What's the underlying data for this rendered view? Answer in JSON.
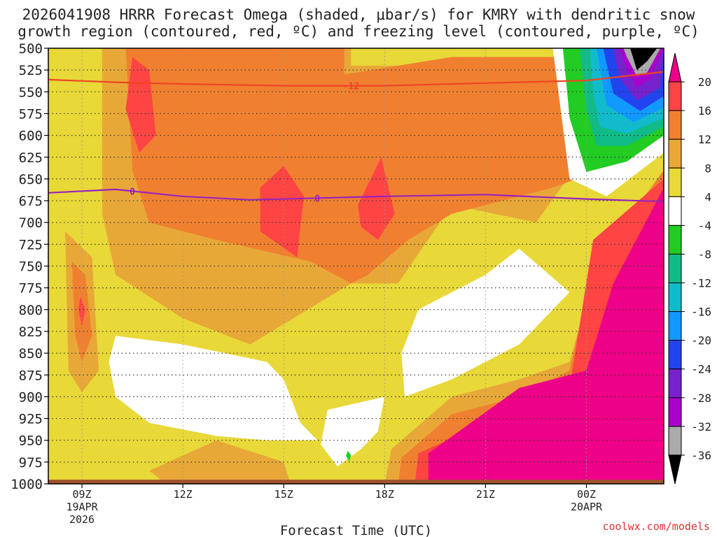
{
  "chart_data": {
    "type": "heatmap",
    "title_line1": "2026041908 HRRR Forecast Omega (shaded, μbar/s) for KMRY with dendritic snow",
    "title_line2": "growth region (contoured, red, ºC) and freezing level (contoured, purple, ºC)",
    "xlabel": "Forecast Time (UTC)",
    "ylabel": "",
    "credit": "coolwx.com/models",
    "x_range_hours": [
      8,
      26.3
    ],
    "x_ticks": [
      {
        "hour": 9,
        "label": "09Z",
        "sub1": "19APR",
        "sub2": "2026"
      },
      {
        "hour": 12,
        "label": "12Z"
      },
      {
        "hour": 15,
        "label": "15Z"
      },
      {
        "hour": 18,
        "label": "18Z"
      },
      {
        "hour": 21,
        "label": "21Z"
      },
      {
        "hour": 24,
        "label": "00Z",
        "sub1": "20APR"
      }
    ],
    "y_ticks": [
      500,
      525,
      550,
      575,
      600,
      625,
      650,
      675,
      700,
      725,
      750,
      775,
      800,
      825,
      850,
      875,
      900,
      925,
      950,
      975,
      1000
    ],
    "y_range_hpa": [
      500,
      1000
    ],
    "colorbar": {
      "labels": [
        "20",
        "16",
        "12",
        "8",
        "4",
        "-4",
        "-8",
        "-12",
        "-16",
        "-20",
        "-24",
        "-28",
        "-32",
        "-36"
      ],
      "colors": [
        "#ee0088",
        "#ff4444",
        "#f08030",
        "#e8a838",
        "#e8d838",
        "#ffffff",
        "#22cc22",
        "#11bb88",
        "#11bbcc",
        "#1199ff",
        "#2244ee",
        "#7722cc",
        "#aa00cc",
        "#aaaaaa",
        "#000000"
      ]
    },
    "contours": [
      {
        "name": "dendritic snow growth region",
        "label": "-12",
        "color": "#ee4422",
        "points_hour_hpa": [
          [
            8,
            536
          ],
          [
            10,
            539
          ],
          [
            12,
            541
          ],
          [
            15,
            543
          ],
          [
            16,
            543
          ],
          [
            18,
            543
          ],
          [
            21,
            540
          ],
          [
            24,
            537
          ],
          [
            26.3,
            527
          ]
        ]
      },
      {
        "name": "freezing level",
        "label": "0",
        "color": "#9922bb",
        "points_hour_hpa": [
          [
            8,
            666
          ],
          [
            10,
            662
          ],
          [
            12,
            670
          ],
          [
            14,
            674
          ],
          [
            16,
            672
          ],
          [
            18,
            670
          ],
          [
            21,
            668
          ],
          [
            24,
            673
          ],
          [
            26.3,
            676
          ]
        ]
      }
    ],
    "regions": [
      {
        "color": "#e8a838",
        "points_hour_hpa": [
          [
            9.6,
            500
          ],
          [
            17,
            500
          ],
          [
            17,
            520
          ],
          [
            24,
            520
          ],
          [
            26.3,
            560
          ],
          [
            26.3,
            600
          ],
          [
            24,
            620
          ],
          [
            22.5,
            700
          ],
          [
            20,
            680
          ],
          [
            18.4,
            770
          ],
          [
            17,
            770
          ],
          [
            14,
            840
          ],
          [
            12,
            810
          ],
          [
            10,
            760
          ],
          [
            9.6,
            690
          ]
        ]
      },
      {
        "color": "#f08030",
        "points_hour_hpa": [
          [
            10.3,
            500
          ],
          [
            16.8,
            500
          ],
          [
            16.8,
            530
          ],
          [
            20,
            510
          ],
          [
            23.8,
            510
          ],
          [
            24.4,
            640
          ],
          [
            23,
            660
          ],
          [
            21,
            680
          ],
          [
            20,
            690
          ],
          [
            18.7,
            720
          ],
          [
            17.5,
            760
          ],
          [
            17,
            770
          ],
          [
            15.8,
            745
          ],
          [
            13,
            720
          ],
          [
            11,
            700
          ],
          [
            10.5,
            640
          ]
        ]
      },
      {
        "color": "#ff4444",
        "points_hour_hpa": [
          [
            10.5,
            510
          ],
          [
            11,
            525
          ],
          [
            11.2,
            600
          ],
          [
            10.7,
            620
          ],
          [
            10.3,
            570
          ]
        ]
      },
      {
        "color": "#ff4444",
        "points_hour_hpa": [
          [
            14.3,
            660
          ],
          [
            15,
            635
          ],
          [
            15.6,
            670
          ],
          [
            15.4,
            740
          ],
          [
            14.3,
            710
          ]
        ]
      },
      {
        "color": "#ff4444",
        "points_hour_hpa": [
          [
            17.2,
            680
          ],
          [
            17.9,
            625
          ],
          [
            18.3,
            690
          ],
          [
            17.8,
            720
          ],
          [
            17.3,
            705
          ]
        ]
      },
      {
        "color": "#e8a838",
        "points_hour_hpa": [
          [
            8.5,
            710
          ],
          [
            9.3,
            740
          ],
          [
            9.5,
            870
          ],
          [
            9,
            895
          ],
          [
            8.6,
            870
          ]
        ]
      },
      {
        "color": "#f08030",
        "points_hour_hpa": [
          [
            8.7,
            745
          ],
          [
            9.1,
            760
          ],
          [
            9.3,
            830
          ],
          [
            9,
            860
          ],
          [
            8.8,
            830
          ]
        ]
      },
      {
        "color": "#ff4444",
        "points_hour_hpa": [
          [
            8.95,
            785
          ],
          [
            9.1,
            800
          ],
          [
            9,
            820
          ],
          [
            8.9,
            800
          ]
        ]
      },
      {
        "color": "#ffffff",
        "points_hour_hpa": [
          [
            10,
            830
          ],
          [
            12,
            840
          ],
          [
            14.5,
            860
          ],
          [
            15,
            880
          ],
          [
            15.5,
            930
          ],
          [
            16,
            950
          ],
          [
            14.5,
            950
          ],
          [
            13,
            945
          ],
          [
            11,
            930
          ],
          [
            10,
            900
          ],
          [
            9.8,
            860
          ]
        ]
      },
      {
        "color": "#ffffff",
        "points_hour_hpa": [
          [
            19,
            800
          ],
          [
            21,
            760
          ],
          [
            22,
            730
          ],
          [
            23.5,
            780
          ],
          [
            22,
            840
          ],
          [
            20,
            880
          ],
          [
            18.6,
            900
          ],
          [
            18.5,
            850
          ]
        ]
      },
      {
        "color": "#ffffff",
        "points_hour_hpa": [
          [
            16.3,
            915
          ],
          [
            18,
            900
          ],
          [
            17.8,
            940
          ],
          [
            17.3,
            960
          ],
          [
            16.6,
            980
          ],
          [
            16.1,
            955
          ]
        ]
      },
      {
        "color": "#e8a838",
        "points_hour_hpa": [
          [
            11,
            985
          ],
          [
            13,
            950
          ],
          [
            15,
            975
          ],
          [
            15.2,
            1000
          ],
          [
            11.5,
            1000
          ]
        ]
      },
      {
        "color": "#e8a838",
        "points_hour_hpa": [
          [
            18.2,
            960
          ],
          [
            20,
            900
          ],
          [
            22,
            880
          ],
          [
            23.5,
            860
          ],
          [
            24,
            790
          ],
          [
            26.3,
            640
          ],
          [
            26.3,
            1000
          ],
          [
            18,
            1000
          ]
        ]
      },
      {
        "color": "#f08030",
        "points_hour_hpa": [
          [
            18.5,
            970
          ],
          [
            20,
            920
          ],
          [
            22,
            900
          ],
          [
            23.5,
            870
          ],
          [
            24.2,
            750
          ],
          [
            26.3,
            640
          ],
          [
            26.3,
            1000
          ],
          [
            18.4,
            1000
          ]
        ]
      },
      {
        "color": "#ff4444",
        "points_hour_hpa": [
          [
            19,
            965
          ],
          [
            21,
            930
          ],
          [
            23.5,
            890
          ],
          [
            24.2,
            720
          ],
          [
            26.3,
            650
          ],
          [
            26.3,
            1000
          ],
          [
            18.9,
            1000
          ]
        ]
      },
      {
        "color": "#ee0088",
        "points_hour_hpa": [
          [
            19.3,
            965
          ],
          [
            22,
            890
          ],
          [
            24,
            870
          ],
          [
            24.8,
            770
          ],
          [
            26.3,
            660
          ],
          [
            26.3,
            1000
          ],
          [
            19.3,
            1000
          ]
        ]
      },
      {
        "color": "#ffffff",
        "points_hour_hpa": [
          [
            23,
            500
          ],
          [
            26.3,
            500
          ],
          [
            26.3,
            620
          ],
          [
            24.6,
            670
          ],
          [
            23.5,
            650
          ],
          [
            23.2,
            560
          ]
        ]
      },
      {
        "color": "#22cc22",
        "points_hour_hpa": [
          [
            23.3,
            500
          ],
          [
            26.3,
            500
          ],
          [
            26.3,
            600
          ],
          [
            25.2,
            630
          ],
          [
            24,
            642
          ],
          [
            23.5,
            580
          ]
        ]
      },
      {
        "color": "#11bb88",
        "points_hour_hpa": [
          [
            23.8,
            500
          ],
          [
            26.3,
            500
          ],
          [
            26.3,
            590
          ],
          [
            25.2,
            612
          ],
          [
            24.3,
            612
          ],
          [
            24,
            570
          ]
        ]
      },
      {
        "color": "#11bbcc",
        "points_hour_hpa": [
          [
            24.1,
            500
          ],
          [
            26.3,
            500
          ],
          [
            26.3,
            580
          ],
          [
            25.2,
            598
          ],
          [
            24.4,
            590
          ],
          [
            24.2,
            550
          ]
        ]
      },
      {
        "color": "#1199ff",
        "points_hour_hpa": [
          [
            24.3,
            500
          ],
          [
            26.3,
            500
          ],
          [
            26.3,
            568
          ],
          [
            25.4,
            585
          ],
          [
            24.6,
            565
          ]
        ]
      },
      {
        "color": "#2244ee",
        "points_hour_hpa": [
          [
            24.5,
            500
          ],
          [
            26.3,
            500
          ],
          [
            26.3,
            555
          ],
          [
            25.6,
            572
          ],
          [
            24.8,
            552
          ]
        ]
      },
      {
        "color": "#7722cc",
        "points_hour_hpa": [
          [
            24.8,
            500
          ],
          [
            26.3,
            500
          ],
          [
            26.2,
            545
          ],
          [
            25.5,
            560
          ],
          [
            25,
            535
          ]
        ]
      },
      {
        "color": "#aa00cc",
        "points_hour_hpa": [
          [
            25,
            500
          ],
          [
            26.3,
            500
          ],
          [
            25.9,
            535
          ],
          [
            25.5,
            545
          ],
          [
            25.2,
            525
          ]
        ]
      },
      {
        "color": "#aaaaaa",
        "points_hour_hpa": [
          [
            25.1,
            500
          ],
          [
            26.2,
            500
          ],
          [
            25.8,
            528
          ],
          [
            25.5,
            532
          ],
          [
            25.2,
            510
          ]
        ]
      },
      {
        "color": "#000000",
        "points_hour_hpa": [
          [
            25.3,
            500
          ],
          [
            26.1,
            500
          ],
          [
            25.8,
            515
          ],
          [
            25.5,
            525
          ]
        ]
      },
      {
        "color": "#22cc22",
        "points_hour_hpa": [
          [
            16.9,
            962
          ],
          [
            17,
            967
          ],
          [
            16.95,
            974
          ],
          [
            16.85,
            968
          ]
        ]
      }
    ]
  }
}
